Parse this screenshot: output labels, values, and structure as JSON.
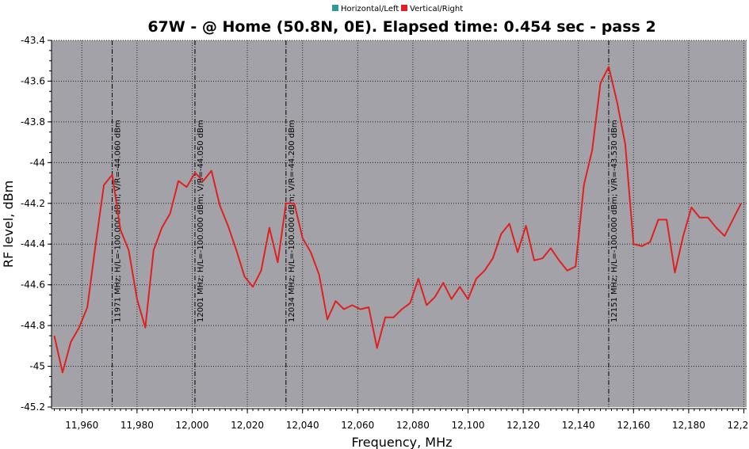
{
  "colors": {
    "plot_background": "#a3a2a8",
    "grid": "#2a2a2a",
    "series_horizontal": "#2e9a9a",
    "series_vertical": "#e02020",
    "marker_line": "#000000"
  },
  "chart_data": {
    "type": "line",
    "title": "67W -  @ Home (50.8N, 0E). Elapsed time: 0.454 sec - pass 2",
    "xlabel": "Frequency, MHz",
    "ylabel": "RF level, dBm",
    "xlim": [
      11949,
      12201
    ],
    "ylim": [
      -45.2,
      -43.4
    ],
    "x_ticks": [
      11960,
      11980,
      12000,
      12020,
      12040,
      12060,
      12080,
      12100,
      12120,
      12140,
      12160,
      12180,
      12200
    ],
    "x_tick_labels": [
      "11,960",
      "11,980",
      "12,000",
      "12,020",
      "12,040",
      "12,060",
      "12,080",
      "12,100",
      "12,120",
      "12,140",
      "12,160",
      "12,180",
      "12,200"
    ],
    "y_ticks": [
      -45.2,
      -45,
      -44.8,
      -44.6,
      -44.4,
      -44.2,
      -44,
      -43.8,
      -43.6,
      -43.4
    ],
    "y_tick_labels": [
      "-45.2",
      "-45",
      "-44.8",
      "-44.6",
      "-44.4",
      "-44.2",
      "-44",
      "-43.8",
      "-43.6",
      "-43.4"
    ],
    "grid": true,
    "legend_position": "top-center",
    "series": [
      {
        "name": "Horizontal/Left",
        "x": [],
        "y": []
      },
      {
        "name": "Vertical/Right",
        "x": [
          11950,
          11953,
          11956,
          11959,
          11962,
          11965,
          11968,
          11971,
          11974,
          11977,
          11980,
          11983,
          11986,
          11989,
          11992,
          11995,
          11998,
          12001,
          12004,
          12007,
          12010,
          12013,
          12016,
          12019,
          12022,
          12025,
          12028,
          12031,
          12034,
          12037,
          12040,
          12043,
          12046,
          12049,
          12052,
          12055,
          12058,
          12061,
          12064,
          12067,
          12070,
          12073,
          12076,
          12079,
          12082,
          12085,
          12088,
          12091,
          12094,
          12097,
          12100,
          12103,
          12106,
          12109,
          12112,
          12115,
          12118,
          12121,
          12124,
          12127,
          12130,
          12133,
          12136,
          12139,
          12142,
          12145,
          12148,
          12151,
          12154,
          12157,
          12160,
          12163,
          12166,
          12169,
          12172,
          12175,
          12178,
          12181,
          12184,
          12187,
          12190,
          12193,
          12196,
          12199
        ],
        "y": [
          -44.85,
          -45.03,
          -44.88,
          -44.81,
          -44.71,
          -44.4,
          -44.11,
          -44.06,
          -44.33,
          -44.43,
          -44.67,
          -44.81,
          -44.43,
          -44.32,
          -44.25,
          -44.09,
          -44.12,
          -44.05,
          -44.09,
          -44.04,
          -44.21,
          -44.31,
          -44.43,
          -44.56,
          -44.61,
          -44.53,
          -44.32,
          -44.49,
          -44.2,
          -44.2,
          -44.37,
          -44.44,
          -44.55,
          -44.77,
          -44.68,
          -44.72,
          -44.7,
          -44.72,
          -44.71,
          -44.91,
          -44.76,
          -44.76,
          -44.72,
          -44.69,
          -44.57,
          -44.7,
          -44.66,
          -44.59,
          -44.67,
          -44.61,
          -44.67,
          -44.57,
          -44.53,
          -44.47,
          -44.35,
          -44.3,
          -44.44,
          -44.31,
          -44.48,
          -44.47,
          -44.42,
          -44.48,
          -44.53,
          -44.51,
          -44.11,
          -43.94,
          -43.61,
          -43.53,
          -43.7,
          -43.91,
          -44.4,
          -44.41,
          -44.39,
          -44.28,
          -44.28,
          -44.54,
          -44.36,
          -44.22,
          -44.27,
          -44.27,
          -44.32,
          -44.36,
          -44.28,
          -44.2
        ]
      }
    ],
    "markers": [
      {
        "x": 11971,
        "label": "11971 MHz; H/L=-100.000 dBm; V/R=-44.060 dBm"
      },
      {
        "x": 12001,
        "label": "12001 MHz; H/L=-100.000 dBm; V/R=-44.050 dBm"
      },
      {
        "x": 12034,
        "label": "12034 MHz; H/L=-100.000 dBm; V/R=-44.200 dBm"
      },
      {
        "x": 12151,
        "label": "12151 MHz; H/L=-100.000 dBm; V/R=-43.530 dBm"
      }
    ]
  }
}
